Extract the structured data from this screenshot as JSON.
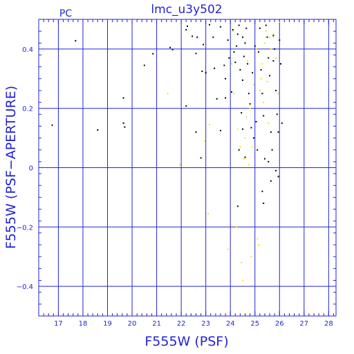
{
  "chart_data": {
    "type": "scatter",
    "title": "lmc_u3y502",
    "corner_label": "PC",
    "xlabel": "F555W (PSF)",
    "ylabel": "F555W (PSF−APERTURE)",
    "xlim": [
      16.2,
      28.3
    ],
    "ylim": [
      -0.5,
      0.5
    ],
    "x_ticks": [
      17,
      18,
      19,
      20,
      21,
      22,
      23,
      24,
      25,
      26,
      27,
      28
    ],
    "y_ticks": [
      -0.4,
      -0.2,
      0,
      0.2,
      0.4
    ],
    "y_tick_labels": [
      "−0.4",
      "−0.2",
      "0",
      "0.2",
      "0.4"
    ],
    "grid": true,
    "colors": {
      "axis": "#2323d6",
      "series_black": "#000000",
      "series_yellow": "#ffe000"
    },
    "series": [
      {
        "color": "black",
        "points": [
          [
            16.75,
            0.143
          ],
          [
            17.7,
            0.428
          ],
          [
            18.6,
            0.127
          ],
          [
            19.65,
            0.235
          ],
          [
            19.65,
            0.15
          ],
          [
            19.7,
            0.137
          ],
          [
            20.5,
            0.345
          ],
          [
            20.85,
            0.384
          ],
          [
            21.55,
            0.405
          ],
          [
            21.65,
            0.398
          ],
          [
            22.2,
            0.208
          ],
          [
            22.2,
            0.465
          ],
          [
            22.25,
            0.477
          ],
          [
            22.45,
            0.443
          ],
          [
            22.6,
            0.12
          ],
          [
            22.65,
            0.44
          ],
          [
            22.6,
            0.385
          ],
          [
            22.8,
            0.033
          ],
          [
            22.85,
            0.325
          ],
          [
            22.9,
            0.415
          ],
          [
            23.0,
            0.32
          ],
          [
            23.15,
            0.482
          ],
          [
            23.3,
            0.44
          ],
          [
            23.35,
            0.335
          ],
          [
            23.45,
            0.232
          ],
          [
            23.6,
            0.475
          ],
          [
            23.6,
            0.125
          ],
          [
            23.75,
            0.345
          ],
          [
            23.8,
            0.3
          ],
          [
            23.8,
            0.235
          ],
          [
            23.9,
            0.43
          ],
          [
            23.95,
            0.37
          ],
          [
            24.05,
            0.255
          ],
          [
            24.1,
            0.465
          ],
          [
            24.15,
            0.39
          ],
          [
            24.2,
            0.355
          ],
          [
            24.25,
            0.41
          ],
          [
            24.3,
            0.45
          ],
          [
            24.35,
            0.48
          ],
          [
            24.4,
            0.33
          ],
          [
            24.45,
            0.185
          ],
          [
            24.5,
            0.44
          ],
          [
            24.5,
            0.295
          ],
          [
            24.55,
            0.375
          ],
          [
            24.6,
            0.42
          ],
          [
            24.65,
            0.47
          ],
          [
            24.7,
            0.35
          ],
          [
            24.75,
            0.25
          ],
          [
            24.8,
            0.215
          ],
          [
            24.85,
            0.135
          ],
          [
            24.9,
            0.32
          ],
          [
            24.95,
            0.1
          ],
          [
            25.0,
            0.41
          ],
          [
            25.05,
            0.155
          ],
          [
            25.1,
            0.06
          ],
          [
            25.15,
            0.39
          ],
          [
            25.2,
            0.47
          ],
          [
            25.25,
            0.33
          ],
          [
            25.3,
            0.25
          ],
          [
            25.35,
            0.175
          ],
          [
            25.4,
            0.03
          ],
          [
            25.45,
            0.48
          ],
          [
            25.5,
            0.44
          ],
          [
            25.55,
            0.37
          ],
          [
            25.6,
            0.31
          ],
          [
            25.65,
            0.12
          ],
          [
            25.7,
            0.06
          ],
          [
            25.75,
            0.445
          ],
          [
            25.8,
            0.4
          ],
          [
            25.85,
            0.26
          ],
          [
            25.9,
            0.18
          ],
          [
            25.95,
            0.12
          ],
          [
            26.0,
            0.43
          ],
          [
            26.05,
            0.35
          ],
          [
            26.1,
            0.15
          ],
          [
            25.55,
            0.02
          ],
          [
            25.65,
            -0.045
          ],
          [
            25.85,
            -0.01
          ],
          [
            25.3,
            -0.08
          ],
          [
            25.35,
            -0.12
          ],
          [
            24.3,
            -0.13
          ],
          [
            24.35,
            0.06
          ],
          [
            24.5,
            0.13
          ],
          [
            24.6,
            0.035
          ],
          [
            25.75,
            0.36
          ],
          [
            25.95,
            -0.03
          ]
        ]
      },
      {
        "color": "yellow",
        "points": [
          [
            21.45,
            0.25
          ],
          [
            21.95,
            0.01
          ],
          [
            22.95,
            0.09
          ],
          [
            23.1,
            -0.155
          ],
          [
            23.15,
            0.145
          ],
          [
            23.9,
            -0.275
          ],
          [
            24.1,
            0.46
          ],
          [
            24.15,
            0.25
          ],
          [
            24.25,
            -0.2
          ],
          [
            24.3,
            0.13
          ],
          [
            24.4,
            0.07
          ],
          [
            24.45,
            -0.32
          ],
          [
            24.5,
            -0.38
          ],
          [
            24.55,
            0.03
          ],
          [
            24.6,
            0.1
          ],
          [
            24.65,
            0.17
          ],
          [
            24.7,
            0.36
          ],
          [
            24.75,
            0.01
          ],
          [
            24.8,
            0.2
          ],
          [
            24.85,
            -0.3
          ],
          [
            24.9,
            0.07
          ],
          [
            24.95,
            0.28
          ],
          [
            25.05,
            0.4
          ],
          [
            25.1,
            -0.24
          ],
          [
            25.15,
            -0.26
          ],
          [
            25.2,
            0.26
          ],
          [
            25.25,
            0.3
          ],
          [
            25.3,
            0.35
          ],
          [
            25.35,
            0.22
          ],
          [
            25.4,
            0.42
          ],
          [
            25.45,
            0.46
          ],
          [
            25.5,
            0.29
          ],
          [
            25.55,
            0.15
          ],
          [
            25.6,
            0.44
          ],
          [
            25.65,
            0.4
          ],
          [
            25.75,
            0.45
          ],
          [
            25.85,
            0.37
          ],
          [
            25.95,
            0.25
          ],
          [
            26.0,
            0.49
          ],
          [
            24.05,
            0.35
          ]
        ]
      }
    ]
  }
}
